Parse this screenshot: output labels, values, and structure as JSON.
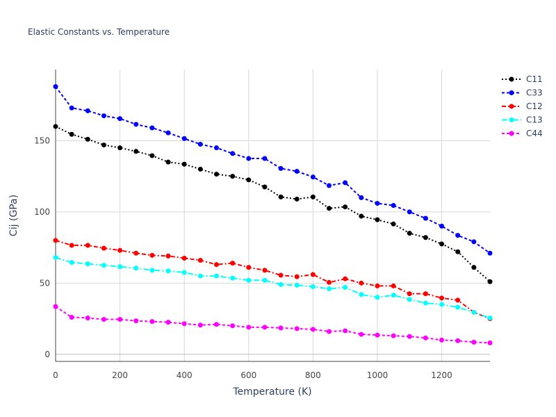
{
  "chart_data": {
    "type": "line",
    "title": "Elastic Constants vs. Temperature",
    "xlabel": "Temperature (K)",
    "ylabel": "Cij (GPa)",
    "xlim": [
      0,
      1350
    ],
    "ylim": [
      -5,
      200
    ],
    "xticks": [
      0,
      200,
      400,
      600,
      800,
      1000,
      1200
    ],
    "yticks": [
      0,
      50,
      100,
      150
    ],
    "grid": true,
    "legend_position": "top-right",
    "x": [
      0,
      50,
      100,
      150,
      200,
      250,
      300,
      350,
      400,
      450,
      500,
      550,
      600,
      650,
      700,
      750,
      800,
      850,
      900,
      950,
      1000,
      1050,
      1100,
      1150,
      1200,
      1250,
      1300,
      1350
    ],
    "series": [
      {
        "name": "C11",
        "color": "#000000",
        "dash": "2,3",
        "values": [
          160,
          154.5,
          151,
          147,
          145,
          142.5,
          139.5,
          135,
          133.5,
          130,
          126.5,
          125,
          122.5,
          117.5,
          110.5,
          109,
          110.5,
          102.5,
          103.5,
          97,
          94.5,
          91.5,
          85,
          82,
          77.5,
          72,
          61,
          51
        ]
      },
      {
        "name": "C33",
        "color": "#0000ff",
        "dash": "4,3",
        "values": [
          188,
          173,
          171,
          167.5,
          165.5,
          161.5,
          159,
          155.5,
          151.5,
          147.5,
          145,
          141,
          137.5,
          137.5,
          130.5,
          128.5,
          124.5,
          118.5,
          120.5,
          110,
          106,
          104.5,
          100,
          95.5,
          90,
          83.5,
          79,
          71
        ]
      },
      {
        "name": "C12",
        "color": "#ff0000",
        "dash": "6,3,2,3",
        "values": [
          80,
          76.5,
          76.5,
          74.5,
          73,
          71,
          69.5,
          69,
          67.5,
          66,
          63,
          64,
          61,
          59,
          55.5,
          54.5,
          56,
          50.5,
          53,
          50,
          48,
          48,
          42.5,
          42.5,
          39.5,
          38,
          29.5,
          25
        ]
      },
      {
        "name": "C13",
        "color": "#00ffff",
        "dash": "8,3,2,3",
        "values": [
          68,
          64.5,
          63.5,
          62.5,
          61.5,
          60.5,
          59,
          58.5,
          57.5,
          55,
          55,
          53.5,
          52,
          52,
          49,
          48.5,
          47.5,
          46,
          47,
          42,
          40,
          41.5,
          38.5,
          36,
          35,
          33,
          29.5,
          25.5
        ]
      },
      {
        "name": "C44",
        "color": "#ff00ff",
        "dash": "4,3",
        "values": [
          33.5,
          26,
          25.5,
          24.5,
          24.5,
          23.5,
          23,
          22.5,
          21.5,
          20.5,
          21,
          20,
          19,
          19,
          18.5,
          18,
          17.5,
          16,
          16.5,
          14,
          13.5,
          13,
          12.5,
          11.5,
          10,
          9.5,
          8.5,
          8
        ]
      }
    ]
  }
}
